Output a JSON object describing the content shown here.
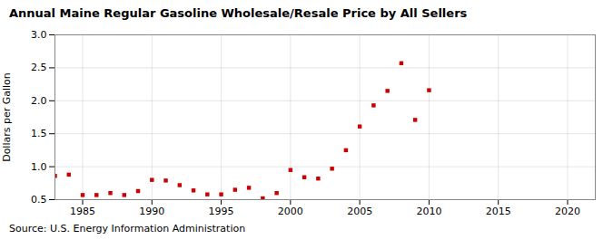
{
  "chart_data": {
    "type": "scatter",
    "title": "Annual Maine Regular Gasoline Wholesale/Resale Price by All Sellers",
    "ylabel": "Dollars per Gallon",
    "source": "Source: U.S. Energy Information Administration",
    "x": [
      1983,
      1984,
      1985,
      1986,
      1987,
      1988,
      1989,
      1990,
      1991,
      1992,
      1993,
      1994,
      1995,
      1996,
      1997,
      1998,
      1999,
      2000,
      2001,
      2002,
      2003,
      2004,
      2005,
      2006,
      2007,
      2008,
      2009,
      2010
    ],
    "values": [
      0.86,
      0.88,
      0.57,
      0.57,
      0.6,
      0.57,
      0.63,
      0.8,
      0.79,
      0.72,
      0.64,
      0.58,
      0.58,
      0.65,
      0.68,
      0.52,
      0.6,
      0.95,
      0.84,
      0.82,
      0.97,
      1.25,
      1.61,
      1.93,
      2.15,
      2.57,
      1.71,
      2.16
    ],
    "color": "#cc0000",
    "marker": "square",
    "xlim": [
      1983,
      2022
    ],
    "ylim": [
      0.5,
      3.0
    ],
    "xticks": [
      1985,
      1990,
      1995,
      2000,
      2005,
      2010,
      2015,
      2020
    ],
    "yticks": [
      0.5,
      {
        "value": 1.0,
        "label": "1.0"
      },
      1.5,
      {
        "value": 2.0,
        "label": "2.0"
      },
      2.5,
      {
        "value": 3.0,
        "label": "3.0"
      }
    ],
    "grid": true
  }
}
